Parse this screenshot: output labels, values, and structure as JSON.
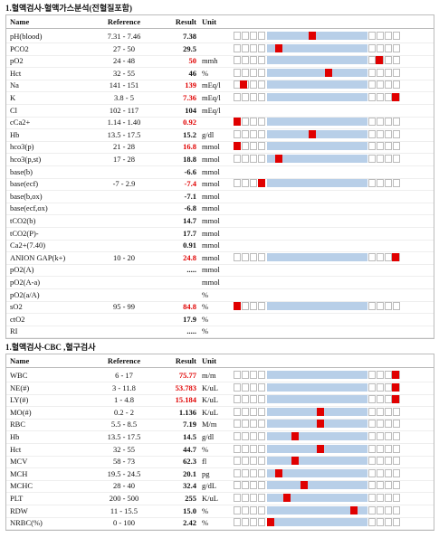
{
  "sections": [
    {
      "title": "1.혈액검사-혈액가스분석(전혈질포함)",
      "header": {
        "name": "Name",
        "reference": "Reference",
        "result": "Result",
        "unit": "Unit"
      },
      "rows": [
        {
          "name": "pH(blood)",
          "reference": "7.31 - 7.46",
          "result": "7.38",
          "marker": 47
        },
        {
          "name": "PCO2",
          "reference": "27 - 50",
          "result": "29.5",
          "marker": 27
        },
        {
          "name": "pO2",
          "reference": "24 - 48",
          "result": "50",
          "unit": "mmh",
          "color": "#e00000",
          "marker": 87
        },
        {
          "name": "Hct",
          "reference": "32 - 55",
          "result": "46",
          "unit": "%",
          "marker": 57
        },
        {
          "name": "Na",
          "reference": "141 - 151",
          "result": "139",
          "unit": "mEq/l",
          "color": "#e00000",
          "marker": 6
        },
        {
          "name": "K",
          "reference": "3.8 - 5",
          "result": "7.36",
          "unit": "mEq/l",
          "color": "#e00000",
          "marker": 97
        },
        {
          "name": "Cl",
          "reference": "102 - 117",
          "result": "104",
          "unit": "mEq/l"
        },
        {
          "name": "cCa2+",
          "reference": "1.14 - 1.40",
          "result": "0.92",
          "color": "#e00000",
          "marker": 2
        },
        {
          "name": "Hb",
          "reference": "13.5 - 17.5",
          "result": "15.2",
          "unit": "g/dl",
          "marker": 47
        },
        {
          "name": "hco3(p)",
          "reference": "21 - 28",
          "result": "16.8",
          "unit": "mmol",
          "color": "#e00000",
          "marker": 2
        },
        {
          "name": "hco3(p,st)",
          "reference": "17 - 28",
          "result": "18.8",
          "unit": "mmol",
          "marker": 27
        },
        {
          "name": "base(b)",
          "result": "-6.6",
          "unit": "mmol"
        },
        {
          "name": "base(ecf)",
          "reference": "-7 - 2.9",
          "result": "-7.4",
          "unit": "mmol",
          "color": "#e00000",
          "marker": 17
        },
        {
          "name": "base(b,ox)",
          "result": "-7.1",
          "unit": "mmol"
        },
        {
          "name": "base(ecf,ox)",
          "result": "-6.8",
          "unit": "mmol"
        },
        {
          "name": "tCO2(b)",
          "result": "14.7",
          "unit": "mmol"
        },
        {
          "name": "tCO2(P)-",
          "result": "17.7",
          "unit": "mmol"
        },
        {
          "name": "Ca2+(7.40)",
          "result": "0.91",
          "unit": "mmol"
        },
        {
          "name": "ANION GAP(k+)",
          "reference": "10 - 20",
          "result": "24.8",
          "unit": "mmol",
          "color": "#e00000",
          "marker": 97
        },
        {
          "name": "pO2(A)",
          "result": ".....",
          "unit": "mmol"
        },
        {
          "name": "pO2(A-a)",
          "unit": "mmol"
        },
        {
          "name": "pO2(a/A)",
          "unit": "%"
        },
        {
          "name": "sO2",
          "reference": "95 - 99",
          "result": "84.8",
          "unit": "%",
          "color": "#e00000",
          "marker": 2
        },
        {
          "name": "ctO2",
          "result": "17.9",
          "unit": "%"
        },
        {
          "name": "RI",
          "result": ".....",
          "unit": "%"
        }
      ]
    },
    {
      "title": "1.혈액검사-CBC ,혈구검사",
      "header": {
        "name": "Name",
        "reference": "Reference",
        "result": "Result",
        "unit": "Unit"
      },
      "rows": [
        {
          "name": "WBC",
          "reference": "6 - 17",
          "result": "75.77",
          "unit": "m/m",
          "color": "#e00000",
          "marker": 97
        },
        {
          "name": "NE(#)",
          "reference": "3 - 11.8",
          "result": "53.783",
          "unit": "K/uL",
          "color": "#e00000",
          "marker": 97
        },
        {
          "name": "LY(#)",
          "reference": "1 - 4.8",
          "result": "15.184",
          "unit": "K/uL",
          "color": "#e00000",
          "marker": 97
        },
        {
          "name": "MO(#)",
          "reference": "0.2 - 2",
          "result": "1.136",
          "unit": "K/uL",
          "marker": 52
        },
        {
          "name": "RBC",
          "reference": "5.5 - 8.5",
          "result": "7.19",
          "unit": "M/m",
          "marker": 52
        },
        {
          "name": "Hb",
          "reference": "13.5 - 17.5",
          "result": "14.5",
          "unit": "g/dl",
          "marker": 37
        },
        {
          "name": "Hct",
          "reference": "32 - 55",
          "result": "44.7",
          "unit": "%",
          "marker": 52
        },
        {
          "name": "MCV",
          "reference": "58 - 73",
          "result": "62.3",
          "unit": "fl",
          "marker": 37
        },
        {
          "name": "MCH",
          "reference": "19.5 - 24.5",
          "result": "20.1",
          "unit": "pg",
          "marker": 27
        },
        {
          "name": "MCHC",
          "reference": "28 - 40",
          "result": "32.4",
          "unit": "g/dL",
          "marker": 42
        },
        {
          "name": "PLT",
          "reference": "200 - 500",
          "result": "255",
          "unit": "K/uL",
          "marker": 32
        },
        {
          "name": "RDW",
          "reference": "11 - 15.5",
          "result": "15.0",
          "unit": "%",
          "marker": 72
        },
        {
          "name": "NRBC(%)",
          "reference": "0 - 100",
          "result": "2.42",
          "unit": "%",
          "marker": 22
        }
      ]
    }
  ]
}
